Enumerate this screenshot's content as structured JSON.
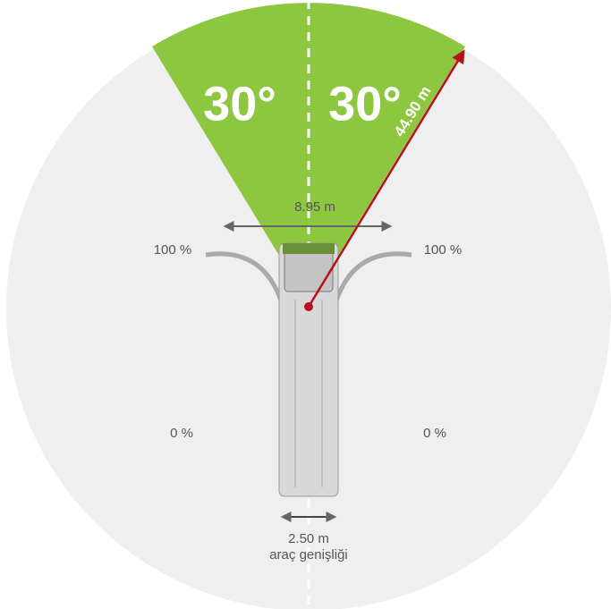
{
  "sectors": [
    {
      "angle_label": "30°"
    },
    {
      "angle_label": "30°"
    }
  ],
  "radius_label": "44.90 m",
  "swept_width_label": "8.95 m",
  "side_labels": {
    "top_left": "100 %",
    "top_right": "100 %",
    "bottom_left": "0 %",
    "bottom_right": "0 %"
  },
  "vehicle": {
    "width_label": "2.50 m",
    "caption": "araç genişliği"
  }
}
